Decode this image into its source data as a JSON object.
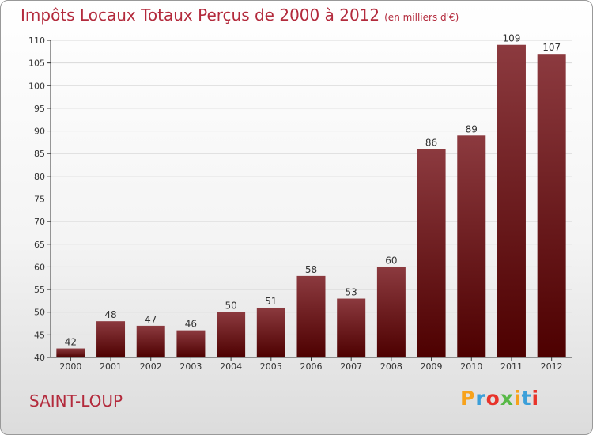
{
  "title": "Impôts Locaux Totaux Perçus de 2000 à 2012",
  "unit_label": "(en milliers d'€)",
  "location": "SAINT-LOUP",
  "logo": {
    "text": "Proxiti",
    "letter_colors": [
      "#f7a21b",
      "#3b9fd9",
      "#e8332a",
      "#58b947",
      "#f7a21b",
      "#3b9fd9",
      "#e8332a"
    ]
  },
  "colors": {
    "title": "#b32a3c",
    "bar_top": "#8c3a3f",
    "bar_bottom": "#4d0000",
    "grid": "#d9d9d9"
  },
  "chart_data": {
    "type": "bar",
    "title": "Impôts Locaux Totaux Perçus de 2000 à 2012",
    "xlabel": "",
    "ylabel": "",
    "categories": [
      "2000",
      "2001",
      "2002",
      "2003",
      "2004",
      "2005",
      "2006",
      "2007",
      "2008",
      "2009",
      "2010",
      "2011",
      "2012"
    ],
    "values": [
      42,
      48,
      47,
      46,
      50,
      51,
      58,
      53,
      60,
      86,
      89,
      109,
      107
    ],
    "ylim": [
      40,
      110
    ],
    "yticks": [
      40,
      45,
      50,
      55,
      60,
      65,
      70,
      75,
      80,
      85,
      90,
      95,
      100,
      105,
      110
    ],
    "grid": true,
    "legend": "none"
  }
}
